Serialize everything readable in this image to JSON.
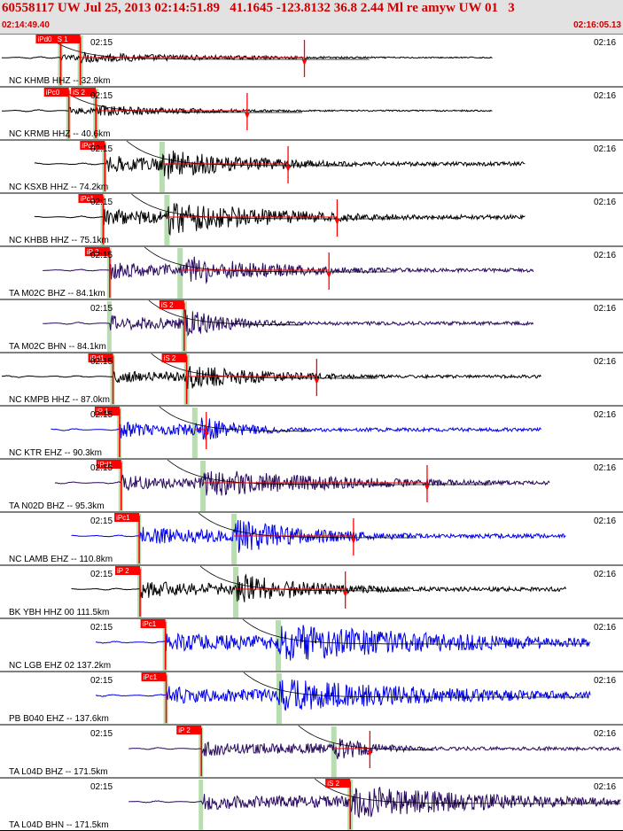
{
  "header": {
    "title": "60558117 UW Jul 25, 2013 02:14:51.89   41.1645 -123.8132 36.8 2.44 Ml re amyw UW 01   3",
    "start_time": "02:14:49.40",
    "end_time": "02:16:05.13"
  },
  "chart_data": {
    "type": "line",
    "title": "60558117 UW Jul 25, 2013 02:14:51.89   41.1645 -123.8132 36.8 2.44 Ml re amyw UW 01   3",
    "x_range": [
      "02:14:49.40",
      "02:16:05.13"
    ],
    "colors": {
      "header_bg": "#e2e2e2",
      "pick": "#ff0000",
      "window": "#b8ddb0",
      "black": "#000000",
      "blue": "#0000ee",
      "purple": "#2a0a5e",
      "red_trace": "#cc0000"
    },
    "traces": [
      {
        "label": "NC KHMB HHZ -- 32.9km",
        "tick_left": "02:15",
        "tick_right": "02:16",
        "p_label": "iPd0",
        "s_label": "S 1",
        "color": "black",
        "p_t": 7.2,
        "s_t": 9.6,
        "trace_start": 0.0,
        "trace_end": 60.0,
        "amp": 0.25,
        "coda_end": 37.0,
        "tail_marker": 37.0
      },
      {
        "label": "NC KRMB HHZ -- 40.6km",
        "tick_left": "02:15",
        "tick_right": "02:16",
        "p_label": "iPc0",
        "s_label": "iS 2",
        "color": "black",
        "p_t": 8.2,
        "s_t": 11.5,
        "trace_start": 0.0,
        "trace_end": 60.0,
        "amp": 0.28,
        "coda_end": 29.0,
        "tail_marker": 30.0
      },
      {
        "label": "NC KSXB HHZ -- 74.2km",
        "tick_left": "02:15",
        "tick_right": "02:16",
        "p_label": "iPc1",
        "s_label": "",
        "color": "black",
        "p_t": 12.6,
        "s_t": 19.6,
        "trace_start": 4.0,
        "trace_end": 64.0,
        "amp": 0.8,
        "coda_end": 35.0,
        "tail_marker": 35.0
      },
      {
        "label": "NC KHBB HHZ -- 75.1km",
        "tick_left": "02:15",
        "tick_right": "02:16",
        "p_label": "iPc1",
        "s_label": "",
        "color": "black",
        "p_t": 12.4,
        "s_t": 20.2,
        "trace_start": 4.0,
        "trace_end": 64.0,
        "amp": 0.85,
        "coda_end": 41.0,
        "tail_marker": 41.0
      },
      {
        "label": "TA M02C BHZ -- 84.1km",
        "tick_left": "02:15",
        "tick_right": "02:16",
        "p_label": "iP 2",
        "s_label": "",
        "color": "purple",
        "p_t": 13.2,
        "s_t": 21.8,
        "trace_start": 5.0,
        "trace_end": 65.0,
        "amp": 0.75,
        "coda_end": 40.0,
        "tail_marker": 40.0
      },
      {
        "label": "TA M02C BHN -- 84.1km",
        "tick_left": "02:15",
        "tick_right": "02:16",
        "p_label": "",
        "s_label": "iS 2",
        "color": "purple",
        "p_t": 13.2,
        "s_t": 22.3,
        "trace_start": 5.0,
        "trace_end": 65.0,
        "amp": 0.7,
        "coda_end": 29.0,
        "tail_marker": 0
      },
      {
        "label": "NC KMPB HHZ -- 87.0km",
        "tick_left": "02:15",
        "tick_right": "02:16",
        "p_label": "iPd1",
        "s_label": "iS 2",
        "color": "black",
        "p_t": 13.6,
        "s_t": 22.6,
        "trace_start": 0.0,
        "trace_end": 66.0,
        "amp": 0.6,
        "coda_end": 38.0,
        "tail_marker": 38.5
      },
      {
        "label": "NC KTR EHZ -- 90.3km",
        "tick_left": "02:15",
        "tick_right": "02:16",
        "p_label": "iP 1",
        "s_label": "",
        "color": "blue",
        "p_t": 14.4,
        "s_t": 23.6,
        "trace_start": 6.0,
        "trace_end": 66.0,
        "amp": 0.7,
        "coda_end": 30.0,
        "tail_marker": 25.0
      },
      {
        "label": "TA N02D BHZ -- 95.3km",
        "tick_left": "02:15",
        "tick_right": "02:16",
        "p_label": "iPd1",
        "s_label": "",
        "color": "purple",
        "p_t": 14.6,
        "s_t": 24.6,
        "trace_start": 6.5,
        "trace_end": 67.0,
        "amp": 0.7,
        "coda_end": 52.0,
        "tail_marker": 52.0
      },
      {
        "label": "NC LAMB EHZ -- 110.8km",
        "tick_left": "02:15",
        "tick_right": "02:16",
        "p_label": "iPc1",
        "s_label": "",
        "color": "blue",
        "p_t": 16.8,
        "s_t": 28.4,
        "trace_start": 8.5,
        "trace_end": 69.0,
        "amp": 0.85,
        "coda_end": 43.0,
        "tail_marker": 43.0
      },
      {
        "label": "BK YBH HHZ 00 111.5km",
        "tick_left": "02:15",
        "tick_right": "02:16",
        "p_label": "iP 2",
        "s_label": "",
        "color": "black",
        "p_t": 16.9,
        "s_t": 28.6,
        "trace_start": 8.5,
        "trace_end": 69.0,
        "amp": 0.8,
        "coda_end": 42.0,
        "tail_marker": 42.0
      },
      {
        "label": "NC LGB EHZ 02 137.2km",
        "tick_left": "02:15",
        "tick_right": "02:16",
        "p_label": "iPc1",
        "s_label": "",
        "color": "blue",
        "p_t": 20.0,
        "s_t": 33.8,
        "trace_start": 11.5,
        "trace_end": 72.0,
        "amp": 0.95,
        "coda_end": 72.0,
        "tail_marker": 0
      },
      {
        "label": "PB B040 EHZ -- 137.6km",
        "tick_left": "02:15",
        "tick_right": "02:16",
        "p_label": "iPc1",
        "s_label": "",
        "color": "blue",
        "p_t": 20.1,
        "s_t": 33.9,
        "trace_start": 11.5,
        "trace_end": 72.0,
        "amp": 0.8,
        "coda_end": 72.0,
        "tail_marker": 0
      },
      {
        "label": "TA L04D BHZ -- 171.5km",
        "tick_left": "02:15",
        "tick_right": "02:16",
        "p_label": "iP 2",
        "s_label": "",
        "color": "purple",
        "p_t": 24.4,
        "s_t": 40.6,
        "trace_start": 15.5,
        "trace_end": 75.7,
        "amp": 0.7,
        "coda_end": 45.0,
        "tail_marker": 45.0
      },
      {
        "label": "TA L04D BHN -- 171.5km",
        "tick_left": "02:15",
        "tick_right": "02:16",
        "p_label": "",
        "s_label": "iS 2",
        "color": "purple",
        "p_t": 24.4,
        "s_t": 42.6,
        "trace_start": 15.5,
        "trace_end": 75.7,
        "amp": 0.8,
        "coda_end": 75.7,
        "tail_marker": 0
      }
    ]
  }
}
